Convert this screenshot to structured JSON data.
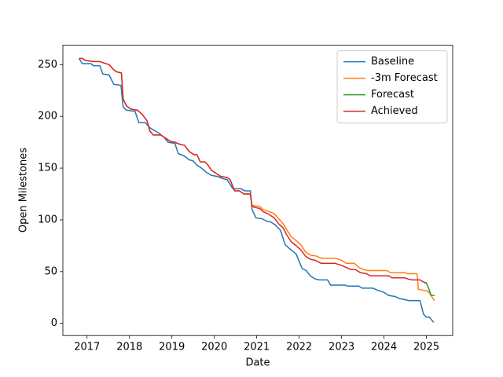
{
  "chart_data": {
    "type": "line",
    "xlabel": "Date",
    "ylabel": "Open Milestones",
    "xlim": [
      2016.43,
      2025.62
    ],
    "ylim": [
      -11.75,
      268.75
    ],
    "xticks": [
      2017,
      2018,
      2019,
      2020,
      2021,
      2022,
      2023,
      2024,
      2025
    ],
    "yticks": [
      0,
      50,
      100,
      150,
      200,
      250
    ],
    "grid": false,
    "legend": "upper right",
    "series": [
      {
        "name": "Baseline",
        "color": "#1f77b4",
        "x": [
          2016.81,
          2016.89,
          2017.09,
          2017.15,
          2017.3,
          2017.37,
          2017.52,
          2017.63,
          2017.8,
          2017.85,
          2017.93,
          2018.13,
          2018.22,
          2018.37,
          2018.48,
          2018.69,
          2018.81,
          2018.91,
          2019.07,
          2019.15,
          2019.28,
          2019.41,
          2019.5,
          2019.59,
          2019.7,
          2019.81,
          2019.93,
          2020.07,
          2020.19,
          2020.3,
          2020.44,
          2020.63,
          2020.72,
          2020.85,
          2020.89,
          2020.98,
          2021.13,
          2021.22,
          2021.33,
          2021.44,
          2021.56,
          2021.67,
          2021.81,
          2021.93,
          2022.07,
          2022.17,
          2022.26,
          2022.37,
          2022.48,
          2022.67,
          2022.74,
          2023.07,
          2023.15,
          2023.41,
          2023.48,
          2023.74,
          2023.85,
          2024.0,
          2024.11,
          2024.26,
          2024.37,
          2024.48,
          2024.59,
          2024.85,
          2024.93,
          2025.0,
          2025.07,
          2025.17
        ],
        "values": [
          256,
          251,
          251,
          249,
          249,
          241,
          240,
          231,
          230,
          209,
          206,
          205,
          194,
          194,
          189,
          184,
          180,
          175,
          174,
          164,
          162,
          158,
          157,
          153,
          150,
          146,
          143,
          142,
          140,
          139,
          130,
          130,
          128,
          128,
          110,
          102,
          101,
          99,
          98,
          95,
          90,
          76,
          71,
          67,
          53,
          51,
          46,
          43,
          42,
          42,
          37,
          37,
          36,
          36,
          34,
          34,
          32,
          30,
          27,
          26,
          24,
          23,
          22,
          22,
          9,
          6,
          6,
          1
        ]
      },
      {
        "name": "-3m Forecast",
        "color": "#ff7f0e",
        "x": [
          2016.81,
          2016.89,
          2016.96,
          2017.15,
          2017.3,
          2017.37,
          2017.52,
          2017.63,
          2017.7,
          2017.81,
          2017.85,
          2017.93,
          2018.04,
          2018.19,
          2018.3,
          2018.41,
          2018.48,
          2018.56,
          2018.74,
          2018.85,
          2018.96,
          2019.07,
          2019.19,
          2019.3,
          2019.41,
          2019.52,
          2019.59,
          2019.67,
          2019.78,
          2019.85,
          2019.93,
          2020.04,
          2020.15,
          2020.3,
          2020.37,
          2020.48,
          2020.59,
          2020.7,
          2020.85,
          2020.89,
          2021.07,
          2021.15,
          2021.3,
          2021.41,
          2021.52,
          2021.63,
          2021.7,
          2021.81,
          2021.93,
          2022.04,
          2022.15,
          2022.26,
          2022.41,
          2022.52,
          2022.85,
          2023.0,
          2023.11,
          2023.3,
          2023.41,
          2023.52,
          2023.63,
          2024.0,
          2024.07,
          2024.15,
          2024.48,
          2024.56,
          2024.78,
          2024.81,
          2024.93,
          2025.04,
          2025.19
        ],
        "values": [
          256,
          256,
          254,
          253,
          253,
          252,
          250,
          245,
          243,
          242,
          217,
          210,
          207,
          206,
          202,
          196,
          186,
          182,
          182,
          179,
          176,
          175,
          173,
          172,
          166,
          163,
          163,
          156,
          156,
          153,
          148,
          145,
          142,
          141,
          139,
          128,
          128,
          125,
          125,
          114,
          113,
          110,
          108,
          106,
          101,
          96,
          91,
          84,
          80,
          76,
          69,
          66,
          65,
          63,
          63,
          61,
          58,
          58,
          54,
          52,
          51,
          51,
          51,
          49,
          49,
          48,
          48,
          33,
          32,
          31,
          22
        ]
      },
      {
        "name": "Forecast",
        "color": "#2ca02c",
        "x": [
          2024.96,
          2025.0,
          2025.07,
          2025.11,
          2025.19
        ],
        "values": [
          39,
          39,
          32,
          27,
          27
        ]
      },
      {
        "name": "Achieved",
        "color": "#d62728",
        "x": [
          2016.81,
          2016.89,
          2016.96,
          2017.15,
          2017.3,
          2017.37,
          2017.52,
          2017.63,
          2017.7,
          2017.81,
          2017.85,
          2017.93,
          2018.04,
          2018.19,
          2018.3,
          2018.41,
          2018.48,
          2018.56,
          2018.74,
          2018.85,
          2018.96,
          2019.07,
          2019.19,
          2019.3,
          2019.41,
          2019.52,
          2019.59,
          2019.67,
          2019.78,
          2019.85,
          2019.93,
          2020.04,
          2020.15,
          2020.3,
          2020.37,
          2020.48,
          2020.59,
          2020.7,
          2020.85,
          2020.89,
          2020.96,
          2021.07,
          2021.15,
          2021.26,
          2021.41,
          2021.52,
          2021.63,
          2021.7,
          2021.81,
          2021.93,
          2022.04,
          2022.15,
          2022.26,
          2022.37,
          2022.52,
          2022.85,
          2023.0,
          2023.11,
          2023.22,
          2023.33,
          2023.44,
          2023.59,
          2023.67,
          2024.0,
          2024.11,
          2024.19,
          2024.48,
          2024.56,
          2024.67,
          2024.85,
          2024.93,
          2025.0
        ],
        "values": [
          256,
          256,
          254,
          253,
          253,
          252,
          250,
          245,
          243,
          242,
          217,
          210,
          207,
          206,
          202,
          196,
          186,
          182,
          182,
          179,
          176,
          175,
          173,
          172,
          166,
          163,
          163,
          156,
          156,
          153,
          148,
          145,
          142,
          141,
          139,
          128,
          128,
          125,
          125,
          113,
          112,
          111,
          108,
          106,
          102,
          96,
          92,
          86,
          79,
          75,
          71,
          65,
          62,
          61,
          58,
          58,
          56,
          54,
          52,
          52,
          49,
          48,
          46,
          46,
          46,
          44,
          44,
          43,
          42,
          42,
          40,
          39
        ]
      }
    ]
  }
}
